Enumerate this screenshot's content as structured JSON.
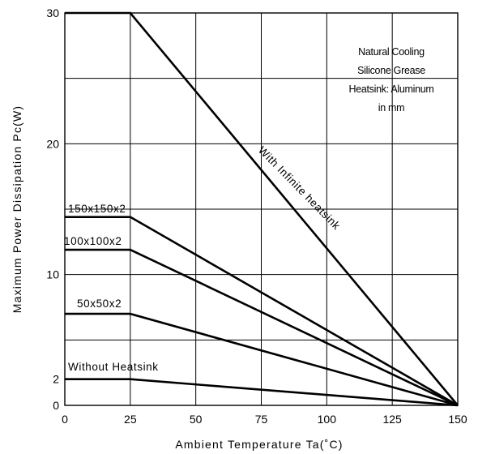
{
  "chart_data": {
    "type": "line",
    "title": "",
    "xlabel": "Ambient Temperature Ta(˚C)",
    "ylabel": "Maximum Power Dissipation Pc(W)",
    "xlim": [
      0,
      150
    ],
    "ylim": [
      0,
      30
    ],
    "x_ticks": [
      "0",
      "25",
      "50",
      "75",
      "100",
      "125",
      "150"
    ],
    "y_ticks": [
      "0",
      "2",
      "10",
      "20",
      "30"
    ],
    "grid": true,
    "notes": [
      "Natural Cooling",
      "Silicone Grease",
      "Heatsink: Aluminum",
      "in mm"
    ],
    "series": [
      {
        "name": "With Infinite heatsink",
        "x": [
          0,
          25,
          150
        ],
        "y": [
          30,
          30,
          0
        ]
      },
      {
        "name": "150x150x2",
        "x": [
          0,
          25,
          150
        ],
        "y": [
          14.4,
          14.4,
          0
        ]
      },
      {
        "name": "100x100x2",
        "x": [
          0,
          25,
          150
        ],
        "y": [
          11.9,
          11.9,
          0
        ]
      },
      {
        "name": "50x50x2",
        "x": [
          0,
          25,
          150
        ],
        "y": [
          7,
          7,
          0
        ]
      },
      {
        "name": "Without Heatsink",
        "x": [
          0,
          25,
          150
        ],
        "y": [
          2,
          2,
          0
        ]
      }
    ]
  }
}
